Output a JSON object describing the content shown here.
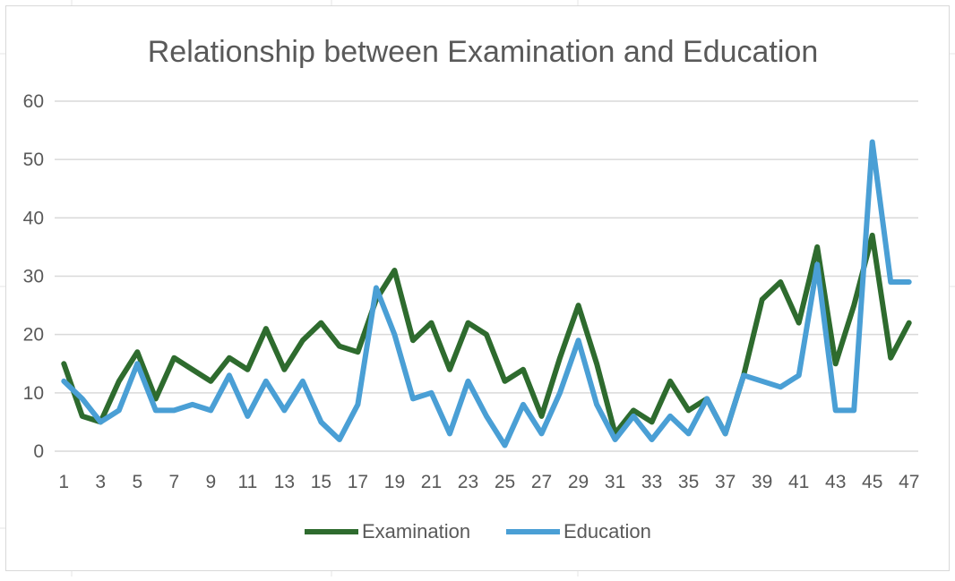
{
  "colors": {
    "examination": "#2e6b2e",
    "education": "#4a9fd5",
    "grid": "#d9d9d9",
    "text": "#595959",
    "title": "#595959"
  },
  "chart_data": {
    "type": "line",
    "title": "Relationship between Examination and Education",
    "xlabel": "",
    "ylabel": "",
    "x": [
      1,
      2,
      3,
      4,
      5,
      6,
      7,
      8,
      9,
      10,
      11,
      12,
      13,
      14,
      15,
      16,
      17,
      18,
      19,
      20,
      21,
      22,
      23,
      24,
      25,
      26,
      27,
      28,
      29,
      30,
      31,
      32,
      33,
      34,
      35,
      36,
      37,
      38,
      39,
      40,
      41,
      42,
      43,
      44,
      45,
      46,
      47
    ],
    "x_tick_labels": [
      "1",
      "3",
      "5",
      "7",
      "9",
      "11",
      "13",
      "15",
      "17",
      "19",
      "21",
      "23",
      "25",
      "27",
      "29",
      "31",
      "33",
      "35",
      "37",
      "39",
      "41",
      "43",
      "45",
      "47"
    ],
    "ylim": [
      0,
      60
    ],
    "y_ticks": [
      0,
      10,
      20,
      30,
      40,
      50,
      60
    ],
    "grid": true,
    "legend_position": "bottom",
    "series": [
      {
        "name": "Examination",
        "values": [
          15,
          6,
          5,
          12,
          17,
          9,
          16,
          14,
          12,
          16,
          14,
          21,
          14,
          19,
          22,
          18,
          17,
          26,
          31,
          19,
          22,
          14,
          22,
          20,
          12,
          14,
          6,
          16,
          25,
          15,
          3,
          7,
          5,
          12,
          7,
          9,
          3,
          13,
          26,
          29,
          22,
          35,
          15,
          25,
          37,
          16,
          22
        ]
      },
      {
        "name": "Education",
        "values": [
          12,
          9,
          5,
          7,
          15,
          7,
          7,
          8,
          7,
          13,
          6,
          12,
          7,
          12,
          5,
          2,
          8,
          28,
          20,
          9,
          10,
          3,
          12,
          6,
          1,
          8,
          3,
          10,
          19,
          8,
          2,
          6,
          2,
          6,
          3,
          9,
          3,
          13,
          12,
          11,
          13,
          32,
          7,
          7,
          53,
          29,
          29
        ]
      }
    ]
  }
}
